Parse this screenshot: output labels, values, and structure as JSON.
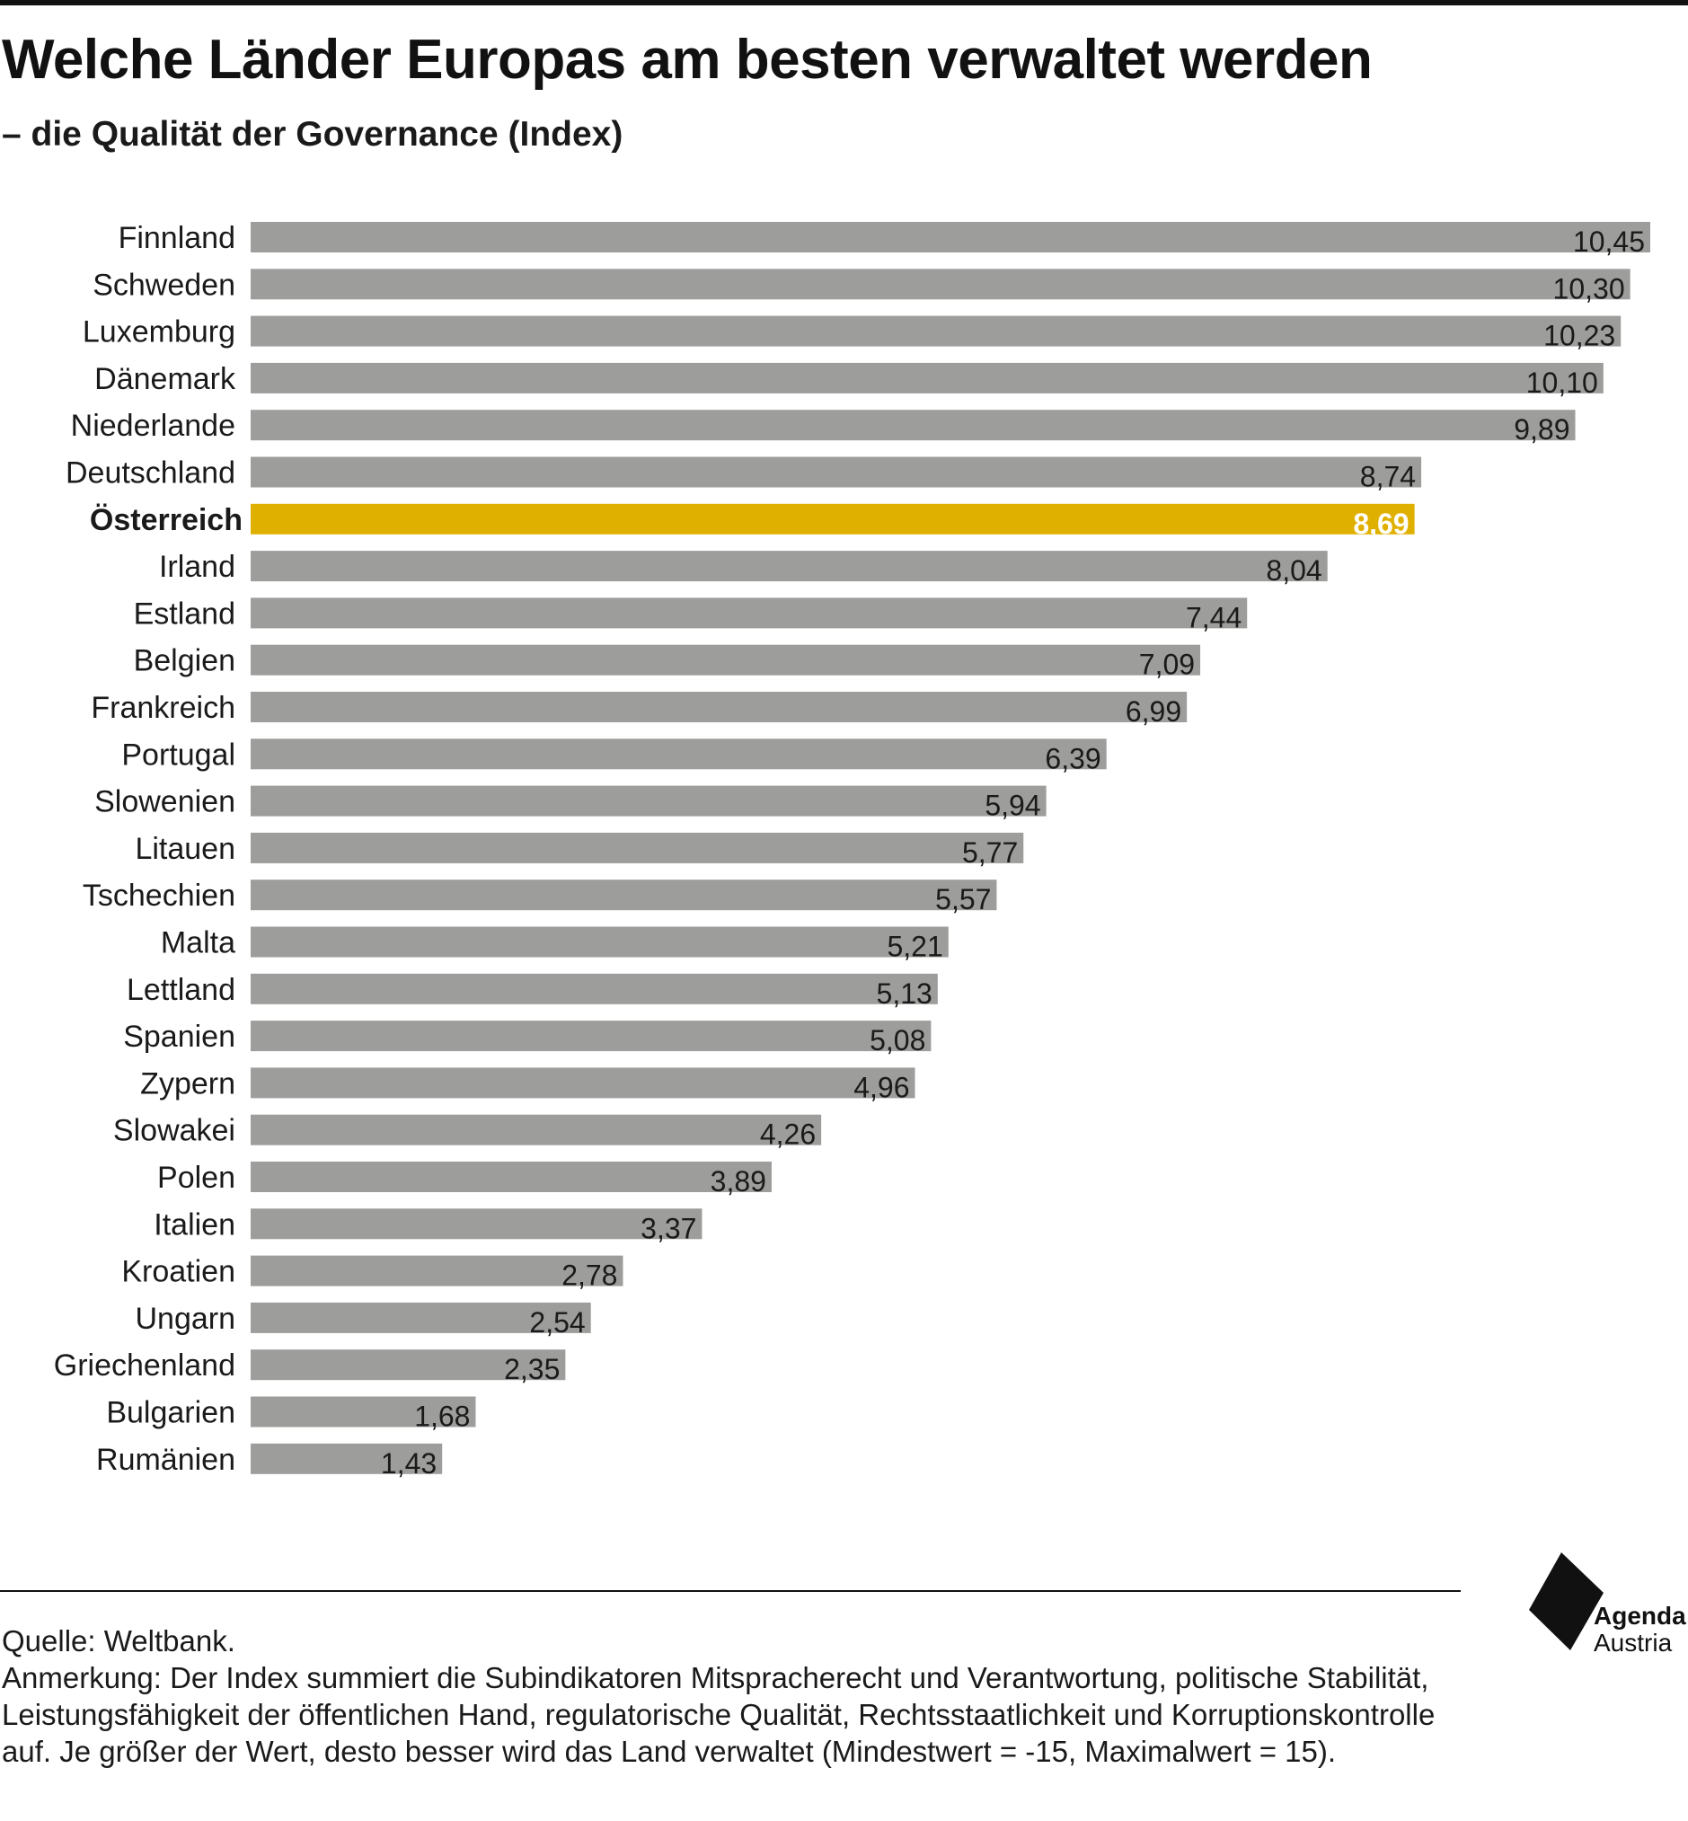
{
  "header": {
    "title": "Welche Länder Europas am besten verwaltet werden",
    "subtitle": "– die Qualität der Governance (Index)"
  },
  "chart_data": {
    "type": "bar",
    "orientation": "horizontal",
    "title": "Welche Länder Europas am besten verwaltet werden",
    "subtitle": "– die Qualität der Governance (Index)",
    "xlabel": "",
    "ylabel": "",
    "grid": false,
    "legend": "none",
    "xlim": [
      0,
      10.45
    ],
    "categories": [
      "Finnland",
      "Schweden",
      "Luxemburg",
      "Dänemark",
      "Niederlande",
      "Deutschland",
      "Österreich",
      "Irland",
      "Estland",
      "Belgien",
      "Frankreich",
      "Portugal",
      "Slowenien",
      "Litauen",
      "Tschechien",
      "Malta",
      "Lettland",
      "Spanien",
      "Zypern",
      "Slowakei",
      "Polen",
      "Italien",
      "Kroatien",
      "Ungarn",
      "Griechenland",
      "Bulgarien",
      "Rumänien"
    ],
    "values": [
      10.45,
      10.3,
      10.23,
      10.1,
      9.89,
      8.74,
      8.69,
      8.04,
      7.44,
      7.09,
      6.99,
      6.39,
      5.94,
      5.77,
      5.57,
      5.21,
      5.13,
      5.08,
      4.96,
      4.26,
      3.89,
      3.37,
      2.78,
      2.54,
      2.35,
      1.68,
      1.43
    ],
    "value_labels": [
      "10,45",
      "10,30",
      "10,23",
      "10,10",
      "9,89",
      "8,74",
      "8,69",
      "8,04",
      "7,44",
      "7,09",
      "6,99",
      "6,39",
      "5,94",
      "5,77",
      "5,57",
      "5,21",
      "5,13",
      "5,08",
      "4,96",
      "4,26",
      "3,89",
      "3,37",
      "2,78",
      "2,54",
      "2,35",
      "1,68",
      "1,43"
    ],
    "highlight": "Österreich",
    "colors": {
      "bar": "#9d9d9b",
      "highlight": "#e0b000",
      "label": "#1a1a1a",
      "highlight_label": "#ffffff"
    }
  },
  "footer": {
    "source": "Quelle: Weltbank.",
    "note": "Anmerkung: Der Index summiert die Subindikatoren Mitspracherecht und Verantwortung, politische Stabilität, Leistungsfähigkeit der öffentlichen Hand, regulatorische Qualität, Rechtsstaatlichkeit und Korruptionskontrolle auf. Je größer der Wert, desto besser wird das Land verwaltet (Mindestwert = -15, Maximalwert = 15)."
  },
  "logo": {
    "name": "Agenda",
    "sub": "Austria"
  }
}
